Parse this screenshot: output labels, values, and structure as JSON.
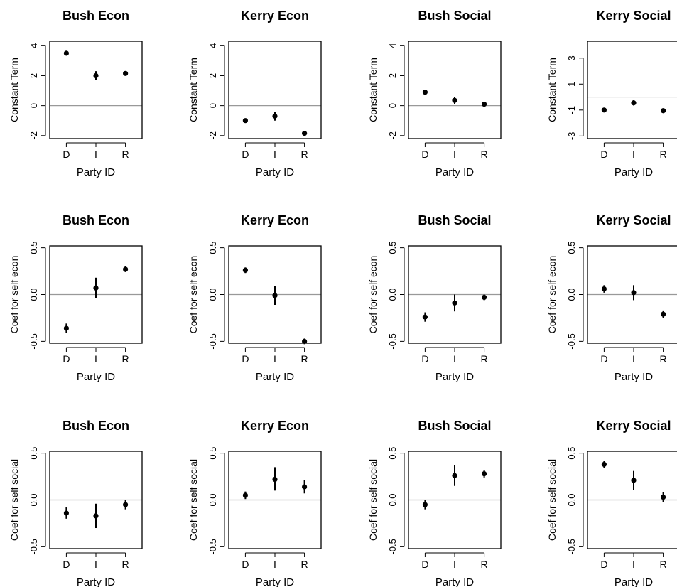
{
  "chart_data": [
    {
      "type": "scatter",
      "title": "Bush Econ",
      "xlabel": "Party ID",
      "ylabel": "Constant Term",
      "categories": [
        "D",
        "I",
        "R"
      ],
      "ylim": [
        -2.2,
        4.3
      ],
      "yticks": [
        "-2",
        "0",
        "2",
        "4"
      ],
      "ytick_values": [
        -2,
        0,
        2,
        4
      ],
      "ref_line": 0,
      "values": [
        3.5,
        2.0,
        2.15
      ],
      "lower": [
        3.4,
        1.7,
        2.05
      ],
      "upper": [
        3.6,
        2.3,
        2.25
      ]
    },
    {
      "type": "scatter",
      "title": "Kerry Econ",
      "xlabel": "Party ID",
      "ylabel": "Constant Term",
      "categories": [
        "D",
        "I",
        "R"
      ],
      "ylim": [
        -2.2,
        4.3
      ],
      "yticks": [
        "-2",
        "0",
        "2",
        "4"
      ],
      "ytick_values": [
        -2,
        0,
        2,
        4
      ],
      "ref_line": 0,
      "values": [
        -1.0,
        -0.7,
        -1.85
      ],
      "lower": [
        -1.1,
        -1.0,
        -1.95
      ],
      "upper": [
        -0.9,
        -0.4,
        -1.75
      ]
    },
    {
      "type": "scatter",
      "title": "Bush Social",
      "xlabel": "Party ID",
      "ylabel": "Constant Term",
      "categories": [
        "D",
        "I",
        "R"
      ],
      "ylim": [
        -2.2,
        4.3
      ],
      "yticks": [
        "-2",
        "0",
        "2",
        "4"
      ],
      "ytick_values": [
        -2,
        0,
        2,
        4
      ],
      "ref_line": 0,
      "values": [
        0.9,
        0.35,
        0.1
      ],
      "lower": [
        0.8,
        0.1,
        0.0
      ],
      "upper": [
        1.0,
        0.6,
        0.2
      ]
    },
    {
      "type": "scatter",
      "title": "Kerry Social",
      "xlabel": "Party ID",
      "ylabel": "Constant Term",
      "categories": [
        "D",
        "I",
        "R"
      ],
      "ylim": [
        -3.2,
        4.3
      ],
      "yticks": [
        "-3",
        "-1",
        "1",
        "3"
      ],
      "ytick_values": [
        -3,
        -1,
        1,
        3
      ],
      "ref_line": 0,
      "values": [
        -1.0,
        -0.45,
        -1.05
      ],
      "lower": [
        -1.1,
        -0.65,
        -1.15
      ],
      "upper": [
        -0.9,
        -0.25,
        -0.95
      ]
    },
    {
      "type": "scatter",
      "title": "Bush Econ",
      "xlabel": "Party ID",
      "ylabel": "Coef for self econ",
      "categories": [
        "D",
        "I",
        "R"
      ],
      "ylim": [
        -0.52,
        0.52
      ],
      "yticks": [
        "-0.5",
        "0.0",
        "0.5"
      ],
      "ytick_values": [
        -0.5,
        0,
        0.5
      ],
      "ref_line": 0,
      "values": [
        -0.36,
        0.07,
        0.27
      ],
      "lower": [
        -0.41,
        -0.04,
        0.24
      ],
      "upper": [
        -0.31,
        0.18,
        0.3
      ]
    },
    {
      "type": "scatter",
      "title": "Kerry Econ",
      "xlabel": "Party ID",
      "ylabel": "Coef for self econ",
      "categories": [
        "D",
        "I",
        "R"
      ],
      "ylim": [
        -0.52,
        0.52
      ],
      "yticks": [
        "-0.5",
        "0.0",
        "0.5"
      ],
      "ytick_values": [
        -0.5,
        0,
        0.5
      ],
      "ref_line": 0,
      "values": [
        0.26,
        -0.01,
        -0.5
      ],
      "lower": [
        0.23,
        -0.11,
        -0.53
      ],
      "upper": [
        0.29,
        0.09,
        -0.47
      ]
    },
    {
      "type": "scatter",
      "title": "Bush Social",
      "xlabel": "Party ID",
      "ylabel": "Coef for self econ",
      "categories": [
        "D",
        "I",
        "R"
      ],
      "ylim": [
        -0.52,
        0.52
      ],
      "yticks": [
        "-0.5",
        "0.0",
        "0.5"
      ],
      "ytick_values": [
        -0.5,
        0,
        0.5
      ],
      "ref_line": 0,
      "values": [
        -0.24,
        -0.09,
        -0.03
      ],
      "lower": [
        -0.29,
        -0.18,
        -0.06
      ],
      "upper": [
        -0.19,
        0.0,
        0.0
      ]
    },
    {
      "type": "scatter",
      "title": "Kerry Social",
      "xlabel": "Party ID",
      "ylabel": "Coef for self econ",
      "categories": [
        "D",
        "I",
        "R"
      ],
      "ylim": [
        -0.52,
        0.52
      ],
      "yticks": [
        "-0.5",
        "0.0",
        "0.5"
      ],
      "ytick_values": [
        -0.5,
        0,
        0.5
      ],
      "ref_line": 0,
      "values": [
        0.06,
        0.02,
        -0.21
      ],
      "lower": [
        0.02,
        -0.06,
        -0.25
      ],
      "upper": [
        0.1,
        0.1,
        -0.17
      ]
    },
    {
      "type": "scatter",
      "title": "Bush Econ",
      "xlabel": "Party ID",
      "ylabel": "Coef for self social",
      "categories": [
        "D",
        "I",
        "R"
      ],
      "ylim": [
        -0.52,
        0.52
      ],
      "yticks": [
        "-0.5",
        "0.0",
        "0.5"
      ],
      "ytick_values": [
        -0.5,
        0,
        0.5
      ],
      "ref_line": 0,
      "values": [
        -0.14,
        -0.17,
        -0.05
      ],
      "lower": [
        -0.2,
        -0.3,
        -0.1
      ],
      "upper": [
        -0.08,
        -0.04,
        0.0
      ]
    },
    {
      "type": "scatter",
      "title": "Kerry Econ",
      "xlabel": "Party ID",
      "ylabel": "Coef for self social",
      "categories": [
        "D",
        "I",
        "R"
      ],
      "ylim": [
        -0.52,
        0.52
      ],
      "yticks": [
        "-0.5",
        "0.0",
        "0.5"
      ],
      "ytick_values": [
        -0.5,
        0,
        0.5
      ],
      "ref_line": 0,
      "values": [
        0.05,
        0.22,
        0.14
      ],
      "lower": [
        0.01,
        0.1,
        0.07
      ],
      "upper": [
        0.09,
        0.35,
        0.21
      ]
    },
    {
      "type": "scatter",
      "title": "Bush Social",
      "xlabel": "Party ID",
      "ylabel": "Coef for self social",
      "categories": [
        "D",
        "I",
        "R"
      ],
      "ylim": [
        -0.52,
        0.52
      ],
      "yticks": [
        "-0.5",
        "0.0",
        "0.5"
      ],
      "ytick_values": [
        -0.5,
        0,
        0.5
      ],
      "ref_line": 0,
      "values": [
        -0.05,
        0.26,
        0.28
      ],
      "lower": [
        -0.1,
        0.15,
        0.24
      ],
      "upper": [
        0.0,
        0.37,
        0.32
      ]
    },
    {
      "type": "scatter",
      "title": "Kerry Social",
      "xlabel": "Party ID",
      "ylabel": "Coef for self social",
      "categories": [
        "D",
        "I",
        "R"
      ],
      "ylim": [
        -0.52,
        0.52
      ],
      "yticks": [
        "-0.5",
        "0.0",
        "0.5"
      ],
      "ytick_values": [
        -0.5,
        0,
        0.5
      ],
      "ref_line": 0,
      "values": [
        0.38,
        0.21,
        0.03
      ],
      "lower": [
        0.34,
        0.11,
        -0.02
      ],
      "upper": [
        0.42,
        0.31,
        0.08
      ]
    }
  ]
}
